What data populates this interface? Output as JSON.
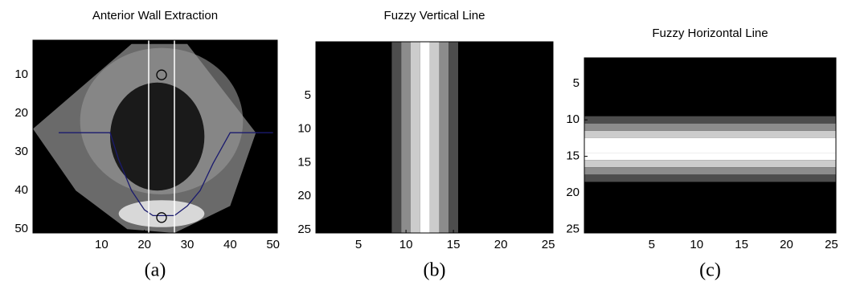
{
  "chart_data": [
    {
      "type": "image",
      "title": "Anterior Wall Extraction",
      "caption": "(a)",
      "xlim": [
        -6,
        51
      ],
      "ylim": [
        1,
        51
      ],
      "y_reversed": true,
      "xticks": [
        10,
        20,
        30,
        40,
        50
      ],
      "yticks": [
        10,
        20,
        30,
        40,
        50
      ],
      "vlines": [
        21,
        27
      ],
      "vline_color": "#ffffff",
      "markers": {
        "x": [
          24,
          24
        ],
        "y": [
          10,
          47
        ],
        "color": "#000000"
      },
      "contour": {
        "x": [
          0,
          12,
          14,
          17,
          20,
          22,
          27,
          30,
          33,
          36,
          40,
          50
        ],
        "y": [
          25,
          25,
          32,
          40,
          45,
          46.5,
          46.5,
          44,
          40,
          33,
          25,
          25
        ],
        "color": "#1a1a6e"
      }
    },
    {
      "type": "image",
      "title": "Fuzzy Vertical Line",
      "caption": "(b)",
      "xlim": [
        0.5,
        25.5
      ],
      "ylim": [
        -3,
        25.5
      ],
      "y_reversed": true,
      "xticks": [
        5,
        10,
        15,
        20,
        25
      ],
      "yticks": [
        5,
        10,
        15,
        20,
        25
      ],
      "band": {
        "orientation": "vertical",
        "positions": [
          9,
          10,
          11,
          12,
          13,
          14,
          15
        ],
        "intensities": [
          0.3,
          0.55,
          0.8,
          1,
          0.8,
          0.55,
          0.3
        ]
      }
    },
    {
      "type": "image",
      "title": "Fuzzy Horizontal Line",
      "caption": "(c)",
      "xlim": [
        -2.5,
        25.5
      ],
      "ylim": [
        1.5,
        25.5
      ],
      "y_reversed": true,
      "xticks": [
        5,
        10,
        15,
        20,
        25
      ],
      "yticks": [
        5,
        10,
        15,
        20,
        25
      ],
      "band": {
        "orientation": "horizontal",
        "positions": [
          10,
          11,
          12,
          13,
          14,
          15,
          16,
          17,
          18
        ],
        "intensities": [
          0.3,
          0.55,
          0.8,
          1,
          1,
          1,
          0.8,
          0.55,
          0.3
        ]
      }
    }
  ]
}
